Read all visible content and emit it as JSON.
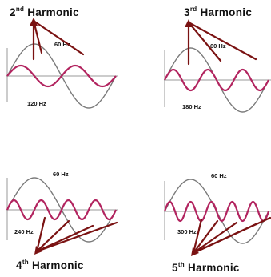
{
  "colors": {
    "fundamental": "#7a7a7a",
    "harmonic": "#b2245f",
    "arrow": "#7a1212",
    "axis": "#9a9a9a"
  },
  "panels": [
    {
      "id": "h2",
      "title_main": "2",
      "title_sup": "nd",
      "title_rest": " Harmonic",
      "fund_label": "60 Hz",
      "harm_label": "120 Hz",
      "order": 2
    },
    {
      "id": "h3",
      "title_main": "3",
      "title_sup": "rd",
      "title_rest": " Harmonic",
      "fund_label": "60 Hz",
      "harm_label": "180 Hz",
      "order": 3
    },
    {
      "id": "h4",
      "title_main": "4",
      "title_sup": "th",
      "title_rest": " Harmonic",
      "fund_label": "60 Hz",
      "harm_label": "240 Hz",
      "order": 4
    },
    {
      "id": "h5",
      "title_main": "5",
      "title_sup": "th",
      "title_rest": " Harmonic",
      "fund_label": "60 Hz",
      "harm_label": "300 Hz",
      "order": 5
    }
  ]
}
